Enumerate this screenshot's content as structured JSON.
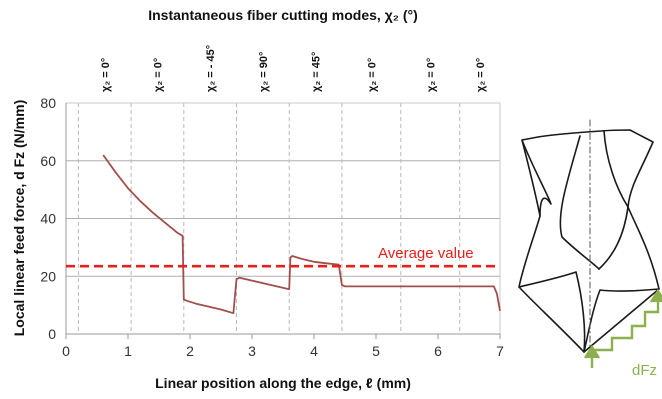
{
  "chart_data": {
    "type": "line",
    "top_title": "Instantaneous fiber cutting modes, χ₂ (°)",
    "xlabel": "Linear position along the edge, ℓ (mm)",
    "ylabel": "Local linear feed force, d Fz (N/mm)",
    "xlim": [
      0,
      7
    ],
    "ylim": [
      0,
      80
    ],
    "x_ticks": [
      0,
      1,
      2,
      3,
      4,
      5,
      6,
      7
    ],
    "y_ticks": [
      0,
      20,
      40,
      60,
      80
    ],
    "grid": "horizontal solid, vertical dashed at mode boundaries",
    "mode_boundaries": [
      0.2,
      1.05,
      1.9,
      2.75,
      3.6,
      4.45,
      5.4,
      6.35,
      7.0
    ],
    "mode_labels": [
      "χ₂ = 0°",
      "χ₂ = 0°",
      "χ₂ = - 45°",
      "χ₂ = 90°",
      "χ₂ = 45°",
      "χ₂ = 0°",
      "χ₂ = 0°",
      "χ₂ = 0°"
    ],
    "series": [
      {
        "color": "#a0504c",
        "x": [
          0.6,
          0.8,
          1.0,
          1.2,
          1.4,
          1.6,
          1.8,
          1.88,
          1.9,
          1.95,
          2.1,
          2.3,
          2.5,
          2.7,
          2.75,
          2.8,
          3.0,
          3.2,
          3.4,
          3.6,
          3.62,
          3.65,
          3.8,
          4.0,
          4.2,
          4.4,
          4.45,
          4.5,
          4.7,
          5.0,
          5.5,
          6.0,
          6.5,
          6.9,
          6.95,
          7.0
        ],
        "y": [
          62,
          56,
          50.5,
          46,
          42,
          38.5,
          35,
          34,
          12,
          11.5,
          10.5,
          9.5,
          8.5,
          7.2,
          19,
          19.5,
          18.5,
          17.5,
          16.5,
          15.5,
          26.5,
          27,
          26,
          25,
          24.5,
          24,
          17,
          16.5,
          16.5,
          16.5,
          16.5,
          16.5,
          16.5,
          16.5,
          14,
          8
        ]
      }
    ],
    "average": {
      "value": 23.5,
      "label": "Average value",
      "color": "#e8201a"
    }
  },
  "drill_diagram": {
    "force_label": "dFz",
    "force_color": "#8cb04e",
    "line_color": "#1a1a1a"
  }
}
